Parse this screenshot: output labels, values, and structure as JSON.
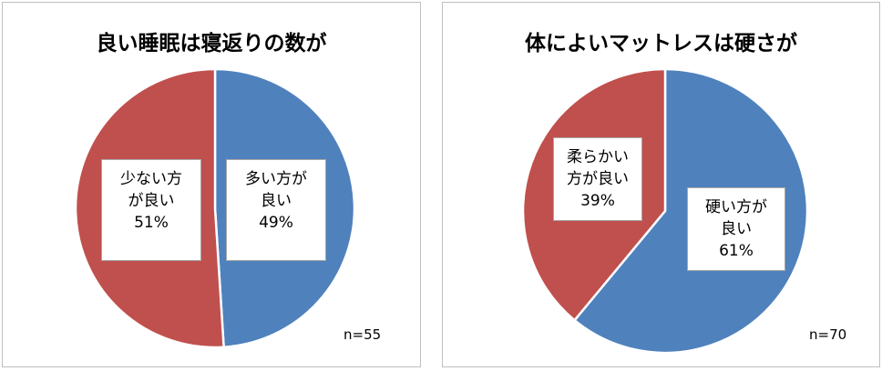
{
  "chart_data": [
    {
      "type": "pie",
      "title": "良い睡眠は寝返りの数が",
      "slices": [
        {
          "label_lines": [
            "多い方が",
            "良い"
          ],
          "pct_text": "49%",
          "value": 49,
          "color": "#4f81bd"
        },
        {
          "label_lines": [
            "少ない方",
            "が良い"
          ],
          "pct_text": "51%",
          "value": 51,
          "color": "#c0504d"
        }
      ],
      "note": "n=55"
    },
    {
      "type": "pie",
      "title": "体によいマットレスは硬さが",
      "slices": [
        {
          "label_lines": [
            "硬い方が",
            "良い"
          ],
          "pct_text": "61%",
          "value": 61,
          "color": "#4f81bd"
        },
        {
          "label_lines": [
            "柔らかい",
            "方が良い"
          ],
          "pct_text": "39%",
          "value": 39,
          "color": "#c0504d"
        }
      ],
      "note": "n=70"
    }
  ]
}
